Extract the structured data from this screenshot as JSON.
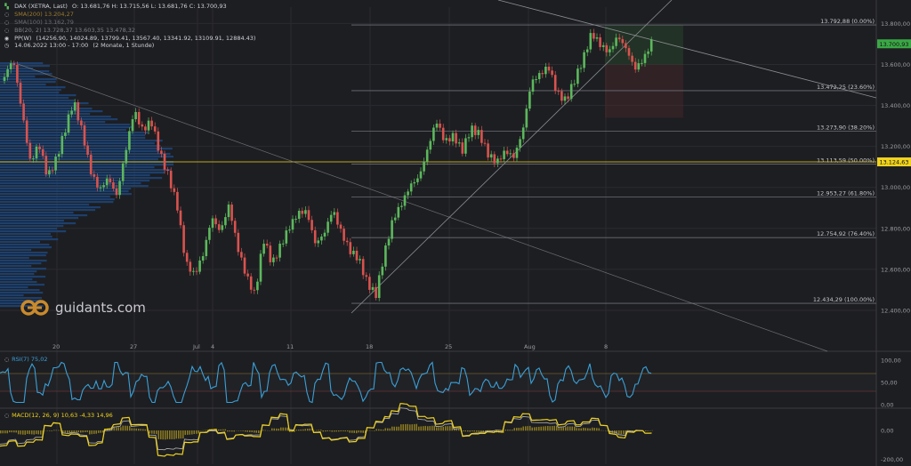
{
  "legend": {
    "instrument": "DAX (XETRA, Last)",
    "ohlc": "O: 13.681,76  H: 13.715,56  L: 13.681,76  C: 13.700,93",
    "sma1": "SMA(200)  13.204,27",
    "sma2": "SMA(100)  13.162,79",
    "bb": "BB(20, 2)  13.728,37  13.603,35  13.478,32",
    "pp_label": "PP(W)",
    "pp_values": "(14256.90, 14024.89, 13799.41, 13567.40, 13341.92, 13109.91, 12884.43)",
    "date_range": "14.06.2022 13:00 - 17:00",
    "interval": "(2 Monate, 1 Stunde)"
  },
  "colors": {
    "background": "#1d1e22",
    "up": "#5cb85c",
    "down": "#d9534f",
    "price_tag": "#3aa845",
    "poc_tag": "#f0d31e",
    "fib_line": "#6c6f76",
    "trend_line": "#8a8d93",
    "rsi": "#3aa0d8",
    "macd": "#f0d31e",
    "signal": "#a8a8a8",
    "volume_profile": "#1e4b86"
  },
  "logo_text": "guidants.com",
  "price_tags": {
    "last": "13.700,93",
    "poc": "13.124,63"
  },
  "rsi_label": "RSI(7)  75,02",
  "macd_label": "MACD(12, 26, 9)  10,63  -4,33  14,96",
  "chart_data": {
    "type": "candlestick",
    "interval": "1 Stunde",
    "y_ticks": [
      "13.800,00",
      "13.600,00",
      "13.400,00",
      "13.200,00",
      "13.000,00",
      "12.800,00",
      "12.600,00",
      "12.400,00"
    ],
    "ylim": [
      12300,
      13880
    ],
    "x_ticks": [
      "20",
      "27",
      "Jul",
      "4",
      "11",
      "18",
      "25",
      "Aug",
      "8"
    ],
    "fibonacci": [
      {
        "label": "13.792,88 (0.00%)",
        "value": 13792.88
      },
      {
        "label": "13.472,25 (23.60%)",
        "value": 13472.25
      },
      {
        "label": "13.273,90 (38.20%)",
        "value": 13273.9
      },
      {
        "label": "13.113,59 (50.00%)",
        "value": 13113.59
      },
      {
        "label": "12.953,27 (61.80%)",
        "value": 12953.27
      },
      {
        "label": "12.754,92 (76.40%)",
        "value": 12754.92
      },
      {
        "label": "12.434,29 (100.00%)",
        "value": 12434.29
      }
    ],
    "close_path": [
      13520,
      13600,
      13350,
      13100,
      13200,
      13050,
      13150,
      13300,
      13450,
      13300,
      13100,
      13000,
      13050,
      12950,
      13150,
      13350,
      13250,
      13300,
      13150,
      13050,
      12920,
      12650,
      12600,
      12700,
      12880,
      12800,
      12920,
      12700,
      12550,
      12450,
      12720,
      12600,
      12700,
      12800,
      12880,
      12900,
      12750,
      12800,
      12920,
      12800,
      12700,
      12650,
      12520,
      12450,
      12650,
      12820,
      12900,
      13000,
      13050,
      13200,
      13350,
      13250,
      13280,
      13200,
      13300,
      13260,
      13150,
      13100,
      13150,
      13120,
      13250,
      13500,
      13550,
      13600,
      13480,
      13450,
      13550,
      13650,
      13770,
      13700,
      13650,
      13720,
      13650,
      13550,
      13600,
      13700
    ],
    "rsi": {
      "value": 75.02,
      "ticks": [
        "100,00",
        "50,00",
        "0,00"
      ],
      "levels": [
        70,
        30
      ]
    },
    "macd": {
      "macd": 10.63,
      "signal": -4.33,
      "hist": 14.96,
      "ticks": [
        "0,00",
        "-200,00"
      ]
    }
  }
}
